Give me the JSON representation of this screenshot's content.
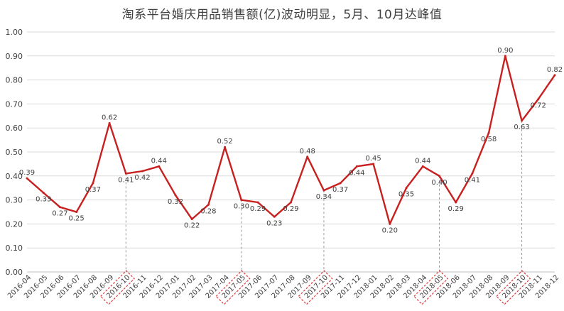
{
  "chart_data": {
    "type": "line",
    "title": "淘系平台婚庆用品销售额(亿)波动明显，5月、10月达峰值",
    "xlabel": "",
    "ylabel": "",
    "ylim": [
      0,
      1.0
    ],
    "yticks": [
      "0.00",
      "0.10",
      "0.20",
      "0.30",
      "0.40",
      "0.50",
      "0.60",
      "0.70",
      "0.80",
      "0.90",
      "1.00"
    ],
    "grid": true,
    "line_color": "#c81f1f",
    "grid_color": "#d9d9d9",
    "highlight_box_color": "#e03b3b",
    "categories": [
      "2016-04",
      "2016-05",
      "2016-06",
      "2016-07",
      "2016-08",
      "2016-09",
      "2016-10",
      "2016-11",
      "2016-12",
      "2017-01",
      "2017-02",
      "2017-03",
      "2017-04",
      "2017-05",
      "2017-06",
      "2017-07",
      "2017-08",
      "2017-09",
      "2017-10",
      "2017-11",
      "2017-12",
      "2018-01",
      "2018-02",
      "2018-03",
      "2018-04",
      "2018-05",
      "2018-06",
      "2018-07",
      "2018-08",
      "2018-09",
      "2018-10",
      "2018-11",
      "2018-12"
    ],
    "series": [
      {
        "values": [
          0.39,
          0.33,
          0.27,
          0.25,
          0.37,
          0.62,
          0.41,
          0.42,
          0.44,
          0.32,
          0.22,
          0.28,
          0.52,
          0.3,
          0.29,
          0.23,
          0.29,
          0.48,
          0.34,
          0.37,
          0.44,
          0.45,
          0.2,
          0.35,
          0.44,
          0.4,
          0.29,
          0.41,
          0.58,
          0.9,
          0.63,
          0.72,
          0.82
        ],
        "data_labels": [
          "0.39",
          "0.33",
          "0.27",
          "0.25",
          "0.37",
          "0.62",
          "0.41",
          "0.42",
          "0.44",
          "0.32",
          "0.22",
          "0.28",
          "0.52",
          "0.30",
          "0.29",
          "0.23",
          "0.29",
          "0.48",
          "0.34",
          "0.37",
          "0.44",
          "0.45",
          "0.20",
          "0.35",
          "0.44",
          "0.40",
          "0.29",
          "0.41",
          "0.58",
          "0.90",
          "0.63",
          "0.72",
          "0.82"
        ]
      }
    ],
    "peak_dropline_categories": [
      "2016-10",
      "2017-05",
      "2017-10",
      "2018-05",
      "2018-10"
    ],
    "boxed_tick_labels": [
      "2016-10",
      "2017-05",
      "2017-10",
      "2018-05",
      "2018-10"
    ]
  }
}
